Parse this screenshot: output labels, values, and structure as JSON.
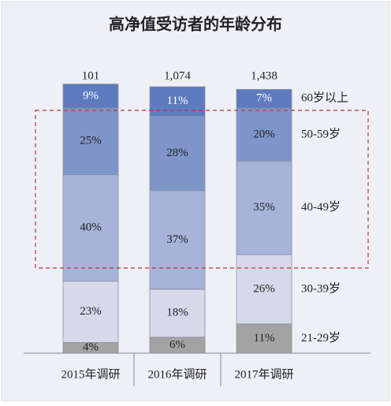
{
  "chart_data": {
    "type": "stacked_bar",
    "title": "高净值受访者的年龄分布",
    "categories": [
      "2015年调研",
      "2016年调研",
      "2017年调研"
    ],
    "ylim": [
      0,
      100
    ],
    "totals": {
      "values": [
        101,
        1074,
        1438
      ],
      "value_labels": [
        "101",
        "1,074",
        "1,438"
      ]
    },
    "series": [
      {
        "name": "21-29岁",
        "color": "#a3a3a3",
        "values": [
          4,
          6,
          11
        ],
        "value_labels": [
          "4%",
          "6%",
          "11%"
        ]
      },
      {
        "name": "30-39岁",
        "color": "#d6d9ea",
        "values": [
          23,
          18,
          26
        ],
        "value_labels": [
          "23%",
          "18%",
          "26%"
        ]
      },
      {
        "name": "40-49岁",
        "color": "#a7b3d8",
        "values": [
          40,
          37,
          35
        ],
        "value_labels": [
          "40%",
          "37%",
          "35%"
        ]
      },
      {
        "name": "50-59岁",
        "color": "#7f95ca",
        "values": [
          25,
          28,
          20
        ],
        "value_labels": [
          "25%",
          "28%",
          "20%"
        ]
      },
      {
        "name": "60岁以上",
        "color": "#5d7bbf",
        "values": [
          9,
          11,
          7
        ],
        "value_labels": [
          "9%",
          "11%",
          "7%"
        ]
      }
    ]
  }
}
